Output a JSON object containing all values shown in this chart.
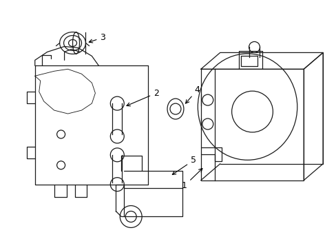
{
  "background": "#ffffff",
  "line_color": "#1a1a1a",
  "line_width": 0.9,
  "figsize": [
    4.89,
    3.6
  ],
  "dpi": 100
}
